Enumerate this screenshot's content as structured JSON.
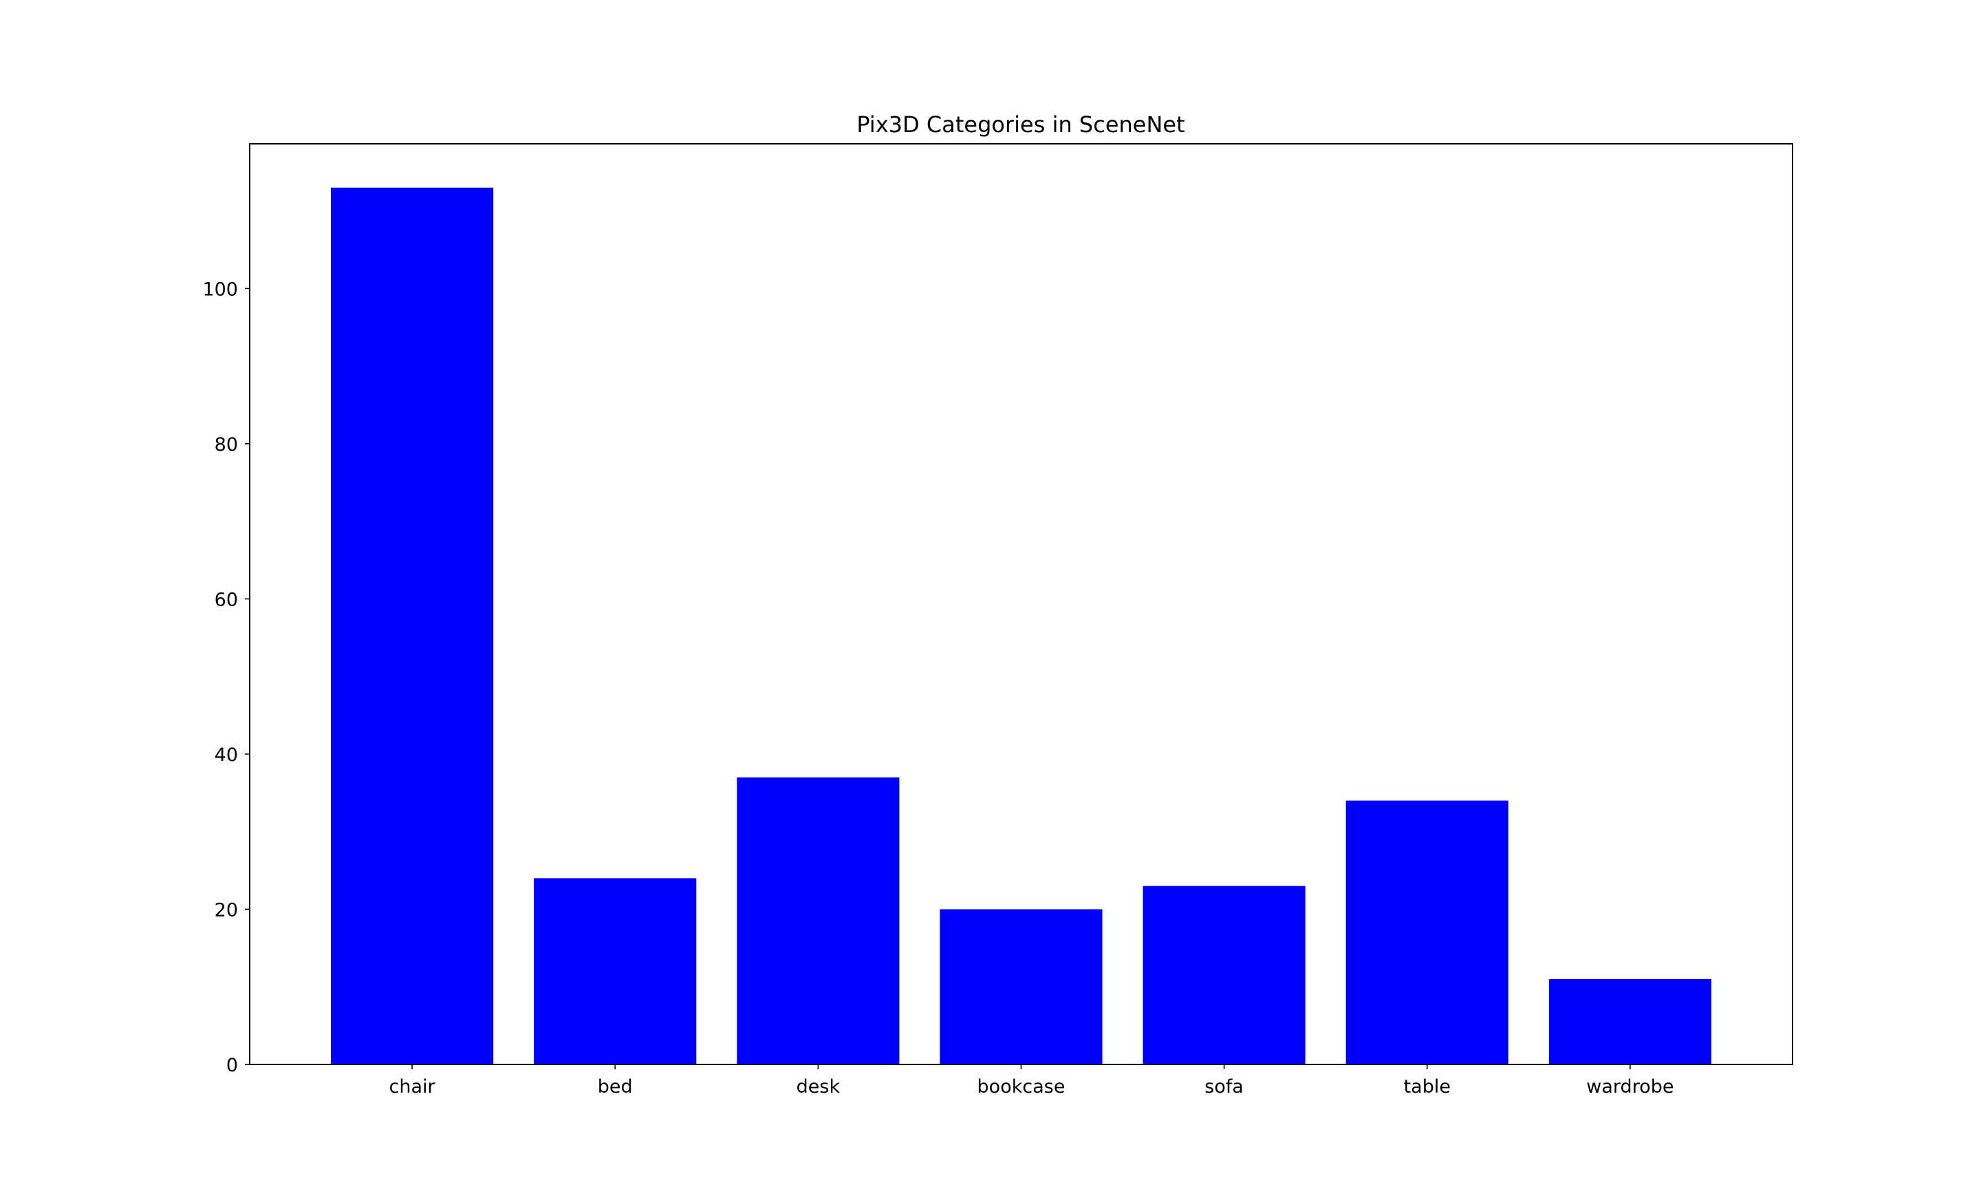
{
  "chart_data": {
    "type": "bar",
    "title": "Pix3D Categories in SceneNet",
    "xlabel": "",
    "ylabel": "",
    "categories": [
      "chair",
      "bed",
      "desk",
      "bookcase",
      "sofa",
      "table",
      "wardrobe"
    ],
    "values": [
      113,
      24,
      37,
      20,
      23,
      34,
      11
    ],
    "ylim": [
      0,
      118.65
    ],
    "yticks": [
      0,
      20,
      40,
      60,
      80,
      100
    ],
    "grid": false,
    "legend": "none",
    "bar_color": "#0000ff"
  }
}
